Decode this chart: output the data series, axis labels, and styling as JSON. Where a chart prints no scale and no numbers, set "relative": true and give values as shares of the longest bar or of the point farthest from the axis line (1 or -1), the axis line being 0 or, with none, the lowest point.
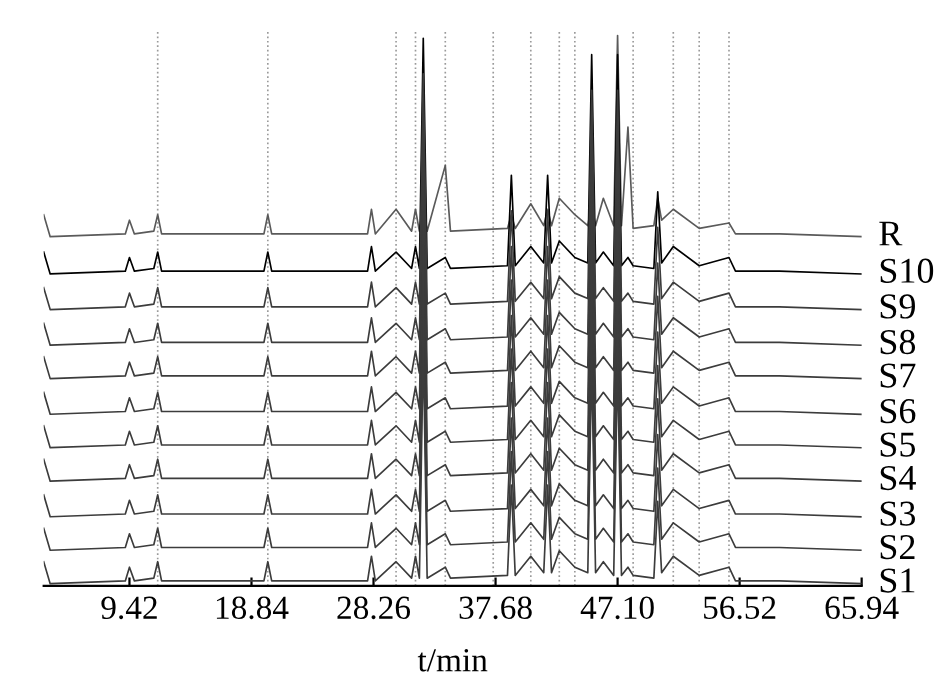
{
  "chart_data": {
    "type": "line",
    "relative": true,
    "xlabel": "t/min",
    "legend": false,
    "grid": false,
    "marker": "none",
    "line_style": "solid",
    "xlim": [
      2.8,
      65.94
    ],
    "xticks": [
      9.42,
      18.84,
      28.26,
      37.68,
      {
        "value": 47.1,
        "label": "47.10"
      },
      56.52,
      65.94
    ],
    "x": [
      2.8,
      3.3,
      9.1,
      9.42,
      9.8,
      11.3,
      11.6,
      11.9,
      19.8,
      20.1,
      20.4,
      27.8,
      28.1,
      28.4,
      30.0,
      31.2,
      31.5,
      31.8,
      32.1,
      32.4,
      33.8,
      34.2,
      38.6,
      38.9,
      39.2,
      40.4,
      41.4,
      41.7,
      42.0,
      42.6,
      43.8,
      44.8,
      45.1,
      45.4,
      46.0,
      46.8,
      47.1,
      47.4,
      47.9,
      48.3,
      49.9,
      50.2,
      50.5,
      51.4,
      53.4,
      55.7,
      56.2,
      59.6,
      65.9
    ],
    "ref_lines": [
      {
        "axis": "x",
        "value": 11.6,
        "line_style": "dotted",
        "color": "#9a9a9a"
      },
      {
        "axis": "x",
        "value": 20.1,
        "line_style": "dotted",
        "color": "#9a9a9a"
      },
      {
        "axis": "x",
        "value": 30.0,
        "line_style": "dotted",
        "color": "#9a9a9a"
      },
      {
        "axis": "x",
        "value": 31.5,
        "line_style": "dotted",
        "color": "#9a9a9a"
      },
      {
        "axis": "x",
        "value": 33.8,
        "line_style": "dotted",
        "color": "#9a9a9a"
      },
      {
        "axis": "x",
        "value": 37.5,
        "line_style": "dotted",
        "color": "#9a9a9a"
      },
      {
        "axis": "x",
        "value": 40.4,
        "line_style": "dotted",
        "color": "#9a9a9a"
      },
      {
        "axis": "x",
        "value": 42.6,
        "line_style": "dotted",
        "color": "#9a9a9a"
      },
      {
        "axis": "x",
        "value": 43.8,
        "line_style": "dotted",
        "color": "#9a9a9a"
      },
      {
        "axis": "x",
        "value": 48.3,
        "line_style": "dotted",
        "color": "#9a9a9a"
      },
      {
        "axis": "x",
        "value": 51.4,
        "line_style": "dotted",
        "color": "#9a9a9a"
      },
      {
        "axis": "x",
        "value": 53.4,
        "line_style": "dotted",
        "color": "#9a9a9a"
      },
      {
        "axis": "x",
        "value": 55.7,
        "line_style": "dotted",
        "color": "#9a9a9a"
      }
    ],
    "series": [
      {
        "name": "R",
        "color": "#5a5a5a",
        "values": [
          0.673,
          0.633,
          0.638,
          0.663,
          0.638,
          0.643,
          0.673,
          0.638,
          0.638,
          0.673,
          0.638,
          0.638,
          0.683,
          0.638,
          0.683,
          0.643,
          0.683,
          0.643,
          0.693,
          0.643,
          0.763,
          0.643,
          0.648,
          0.673,
          0.648,
          0.693,
          0.653,
          0.683,
          0.653,
          0.703,
          0.673,
          0.653,
          0.693,
          0.653,
          0.703,
          0.653,
          1.0,
          0.653,
          0.833,
          0.648,
          0.653,
          0.703,
          0.663,
          0.683,
          0.648,
          0.658,
          0.638,
          0.638,
          0.633
        ]
      },
      {
        "name": "S10",
        "color": "#000000",
        "values": [
          0.605,
          0.565,
          0.57,
          0.595,
          0.57,
          0.575,
          0.605,
          0.57,
          0.57,
          0.605,
          0.57,
          0.57,
          0.615,
          0.57,
          0.605,
          0.575,
          0.615,
          0.575,
          0.995,
          0.575,
          0.595,
          0.575,
          0.58,
          0.745,
          0.58,
          0.615,
          0.585,
          0.745,
          0.585,
          0.625,
          0.595,
          0.585,
          0.965,
          0.585,
          0.605,
          0.58,
          0.965,
          0.58,
          0.595,
          0.58,
          0.575,
          0.715,
          0.585,
          0.615,
          0.58,
          0.595,
          0.57,
          0.57,
          0.565
        ]
      },
      {
        "name": "S9",
        "color": "#3c3c3c",
        "values": [
          0.54,
          0.5,
          0.505,
          0.53,
          0.505,
          0.51,
          0.54,
          0.505,
          0.505,
          0.54,
          0.505,
          0.505,
          0.55,
          0.505,
          0.54,
          0.51,
          0.55,
          0.51,
          0.93,
          0.51,
          0.53,
          0.51,
          0.515,
          0.68,
          0.515,
          0.55,
          0.52,
          0.68,
          0.52,
          0.56,
          0.53,
          0.52,
          0.9,
          0.52,
          0.54,
          0.515,
          0.9,
          0.515,
          0.53,
          0.515,
          0.51,
          0.65,
          0.52,
          0.55,
          0.515,
          0.53,
          0.505,
          0.505,
          0.5
        ]
      },
      {
        "name": "S8",
        "color": "#3c3c3c",
        "values": [
          0.475,
          0.435,
          0.44,
          0.465,
          0.44,
          0.445,
          0.475,
          0.44,
          0.44,
          0.475,
          0.44,
          0.44,
          0.485,
          0.44,
          0.475,
          0.445,
          0.485,
          0.445,
          0.865,
          0.445,
          0.465,
          0.445,
          0.45,
          0.615,
          0.45,
          0.485,
          0.455,
          0.615,
          0.455,
          0.495,
          0.465,
          0.455,
          0.835,
          0.455,
          0.475,
          0.45,
          0.835,
          0.45,
          0.465,
          0.45,
          0.445,
          0.585,
          0.455,
          0.485,
          0.45,
          0.465,
          0.44,
          0.44,
          0.435
        ]
      },
      {
        "name": "S7",
        "color": "#3c3c3c",
        "values": [
          0.414,
          0.374,
          0.379,
          0.404,
          0.379,
          0.384,
          0.414,
          0.379,
          0.379,
          0.414,
          0.379,
          0.379,
          0.424,
          0.379,
          0.414,
          0.384,
          0.424,
          0.384,
          0.804,
          0.384,
          0.404,
          0.384,
          0.389,
          0.554,
          0.389,
          0.424,
          0.394,
          0.554,
          0.394,
          0.434,
          0.404,
          0.394,
          0.774,
          0.394,
          0.414,
          0.389,
          0.774,
          0.389,
          0.404,
          0.389,
          0.384,
          0.524,
          0.394,
          0.424,
          0.389,
          0.404,
          0.379,
          0.379,
          0.374
        ]
      },
      {
        "name": "S6",
        "color": "#3c3c3c",
        "values": [
          0.349,
          0.309,
          0.314,
          0.339,
          0.314,
          0.319,
          0.349,
          0.314,
          0.314,
          0.349,
          0.314,
          0.314,
          0.359,
          0.314,
          0.349,
          0.319,
          0.359,
          0.319,
          0.739,
          0.319,
          0.339,
          0.319,
          0.324,
          0.489,
          0.324,
          0.359,
          0.329,
          0.489,
          0.329,
          0.369,
          0.339,
          0.329,
          0.709,
          0.329,
          0.349,
          0.324,
          0.709,
          0.324,
          0.339,
          0.324,
          0.319,
          0.459,
          0.329,
          0.359,
          0.324,
          0.339,
          0.314,
          0.314,
          0.309
        ]
      },
      {
        "name": "S5",
        "color": "#3c3c3c",
        "values": [
          0.288,
          0.248,
          0.253,
          0.278,
          0.253,
          0.258,
          0.288,
          0.253,
          0.253,
          0.288,
          0.253,
          0.253,
          0.298,
          0.253,
          0.288,
          0.258,
          0.298,
          0.258,
          0.678,
          0.258,
          0.278,
          0.258,
          0.263,
          0.428,
          0.263,
          0.298,
          0.268,
          0.428,
          0.268,
          0.308,
          0.278,
          0.268,
          0.648,
          0.268,
          0.288,
          0.263,
          0.648,
          0.263,
          0.278,
          0.263,
          0.258,
          0.398,
          0.268,
          0.298,
          0.263,
          0.278,
          0.253,
          0.253,
          0.248
        ]
      },
      {
        "name": "S4",
        "color": "#3c3c3c",
        "values": [
          0.227,
          0.187,
          0.192,
          0.217,
          0.192,
          0.197,
          0.227,
          0.192,
          0.192,
          0.227,
          0.192,
          0.192,
          0.237,
          0.192,
          0.227,
          0.197,
          0.237,
          0.197,
          0.617,
          0.197,
          0.217,
          0.197,
          0.202,
          0.367,
          0.202,
          0.237,
          0.207,
          0.367,
          0.207,
          0.247,
          0.217,
          0.207,
          0.587,
          0.207,
          0.227,
          0.202,
          0.587,
          0.202,
          0.217,
          0.202,
          0.197,
          0.337,
          0.207,
          0.237,
          0.202,
          0.217,
          0.192,
          0.192,
          0.187
        ]
      },
      {
        "name": "S3",
        "color": "#3c3c3c",
        "values": [
          0.162,
          0.122,
          0.127,
          0.152,
          0.127,
          0.132,
          0.162,
          0.127,
          0.127,
          0.162,
          0.127,
          0.127,
          0.172,
          0.127,
          0.162,
          0.132,
          0.172,
          0.132,
          0.552,
          0.132,
          0.152,
          0.132,
          0.137,
          0.302,
          0.137,
          0.172,
          0.142,
          0.302,
          0.142,
          0.182,
          0.152,
          0.142,
          0.522,
          0.142,
          0.162,
          0.137,
          0.522,
          0.137,
          0.152,
          0.137,
          0.132,
          0.272,
          0.142,
          0.172,
          0.137,
          0.152,
          0.127,
          0.127,
          0.122
        ]
      },
      {
        "name": "S2",
        "color": "#3c3c3c",
        "values": [
          0.101,
          0.061,
          0.066,
          0.091,
          0.066,
          0.071,
          0.101,
          0.066,
          0.066,
          0.101,
          0.066,
          0.066,
          0.111,
          0.066,
          0.101,
          0.071,
          0.111,
          0.071,
          0.491,
          0.071,
          0.091,
          0.071,
          0.076,
          0.241,
          0.076,
          0.111,
          0.081,
          0.241,
          0.081,
          0.121,
          0.091,
          0.081,
          0.461,
          0.081,
          0.101,
          0.076,
          0.461,
          0.076,
          0.091,
          0.076,
          0.071,
          0.211,
          0.081,
          0.111,
          0.076,
          0.091,
          0.066,
          0.066,
          0.061
        ]
      },
      {
        "name": "S1",
        "color": "#3c3c3c",
        "values": [
          0.04,
          0,
          0.005,
          0.03,
          0.005,
          0.01,
          0.04,
          0.005,
          0.005,
          0.04,
          0.005,
          0.005,
          0.05,
          0.005,
          0.04,
          0.01,
          0.05,
          0.01,
          0.43,
          0.01,
          0.03,
          0.01,
          0.015,
          0.18,
          0.015,
          0.05,
          0.02,
          0.18,
          0.02,
          0.06,
          0.03,
          0.02,
          0.4,
          0.02,
          0.04,
          0.015,
          0.4,
          0.015,
          0.03,
          0.015,
          0.01,
          0.15,
          0.02,
          0.05,
          0.015,
          0.03,
          0.005,
          0.005,
          0
        ]
      }
    ]
  }
}
